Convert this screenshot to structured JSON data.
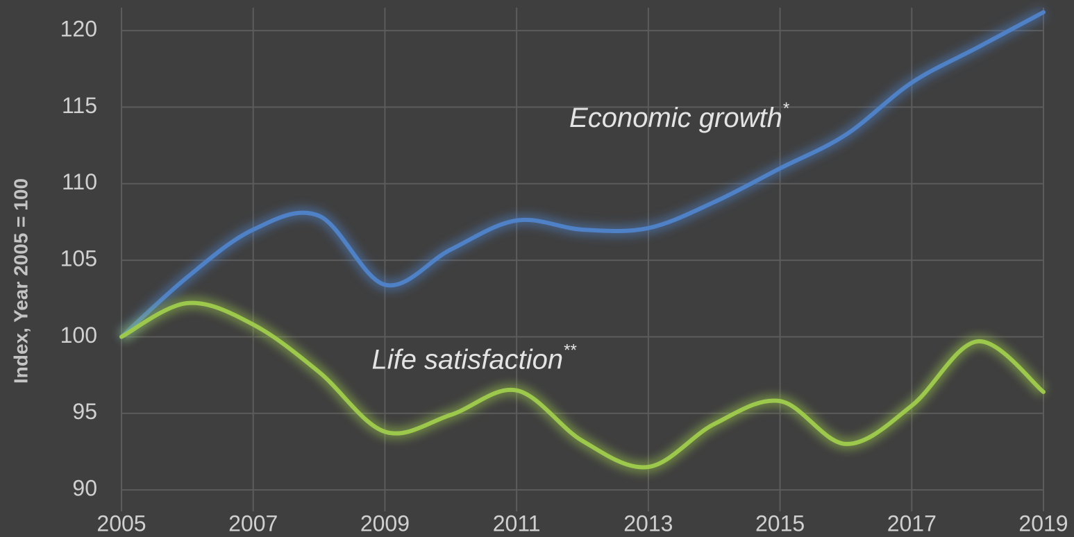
{
  "chart_data": {
    "type": "line",
    "y_label": "Index, Year 2005 = 100",
    "x": [
      2005,
      2006,
      2007,
      2008,
      2009,
      2010,
      2011,
      2012,
      2013,
      2014,
      2015,
      2016,
      2017,
      2018,
      2019
    ],
    "series": [
      {
        "name": "Economic growth",
        "color": "#4f81c7",
        "values": [
          100,
          103.9,
          107.0,
          107.9,
          103.4,
          105.7,
          107.6,
          107.0,
          107.1,
          108.8,
          111.0,
          113.2,
          116.6,
          118.9,
          121.2
        ]
      },
      {
        "name": "Life satisfaction",
        "color": "#9cc84b",
        "values": [
          100,
          102.2,
          100.8,
          97.7,
          93.8,
          94.9,
          96.5,
          93.2,
          91.5,
          94.3,
          95.8,
          93.0,
          95.5,
          99.7,
          96.4
        ]
      }
    ],
    "annotations": [
      {
        "text": "Economic growth",
        "sup": "*",
        "x": 2011.8,
        "y": 114.2
      },
      {
        "text": "Life satisfaction",
        "sup": "**",
        "x": 2008.8,
        "y": 98.4
      }
    ],
    "xlim": [
      2005,
      2019
    ],
    "xticks": [
      2005,
      2007,
      2009,
      2011,
      2013,
      2015,
      2017,
      2019
    ],
    "ylim": [
      88.6,
      121.5
    ],
    "yticks": [
      90,
      95,
      100,
      105,
      110,
      115,
      120
    ],
    "grid": true
  }
}
